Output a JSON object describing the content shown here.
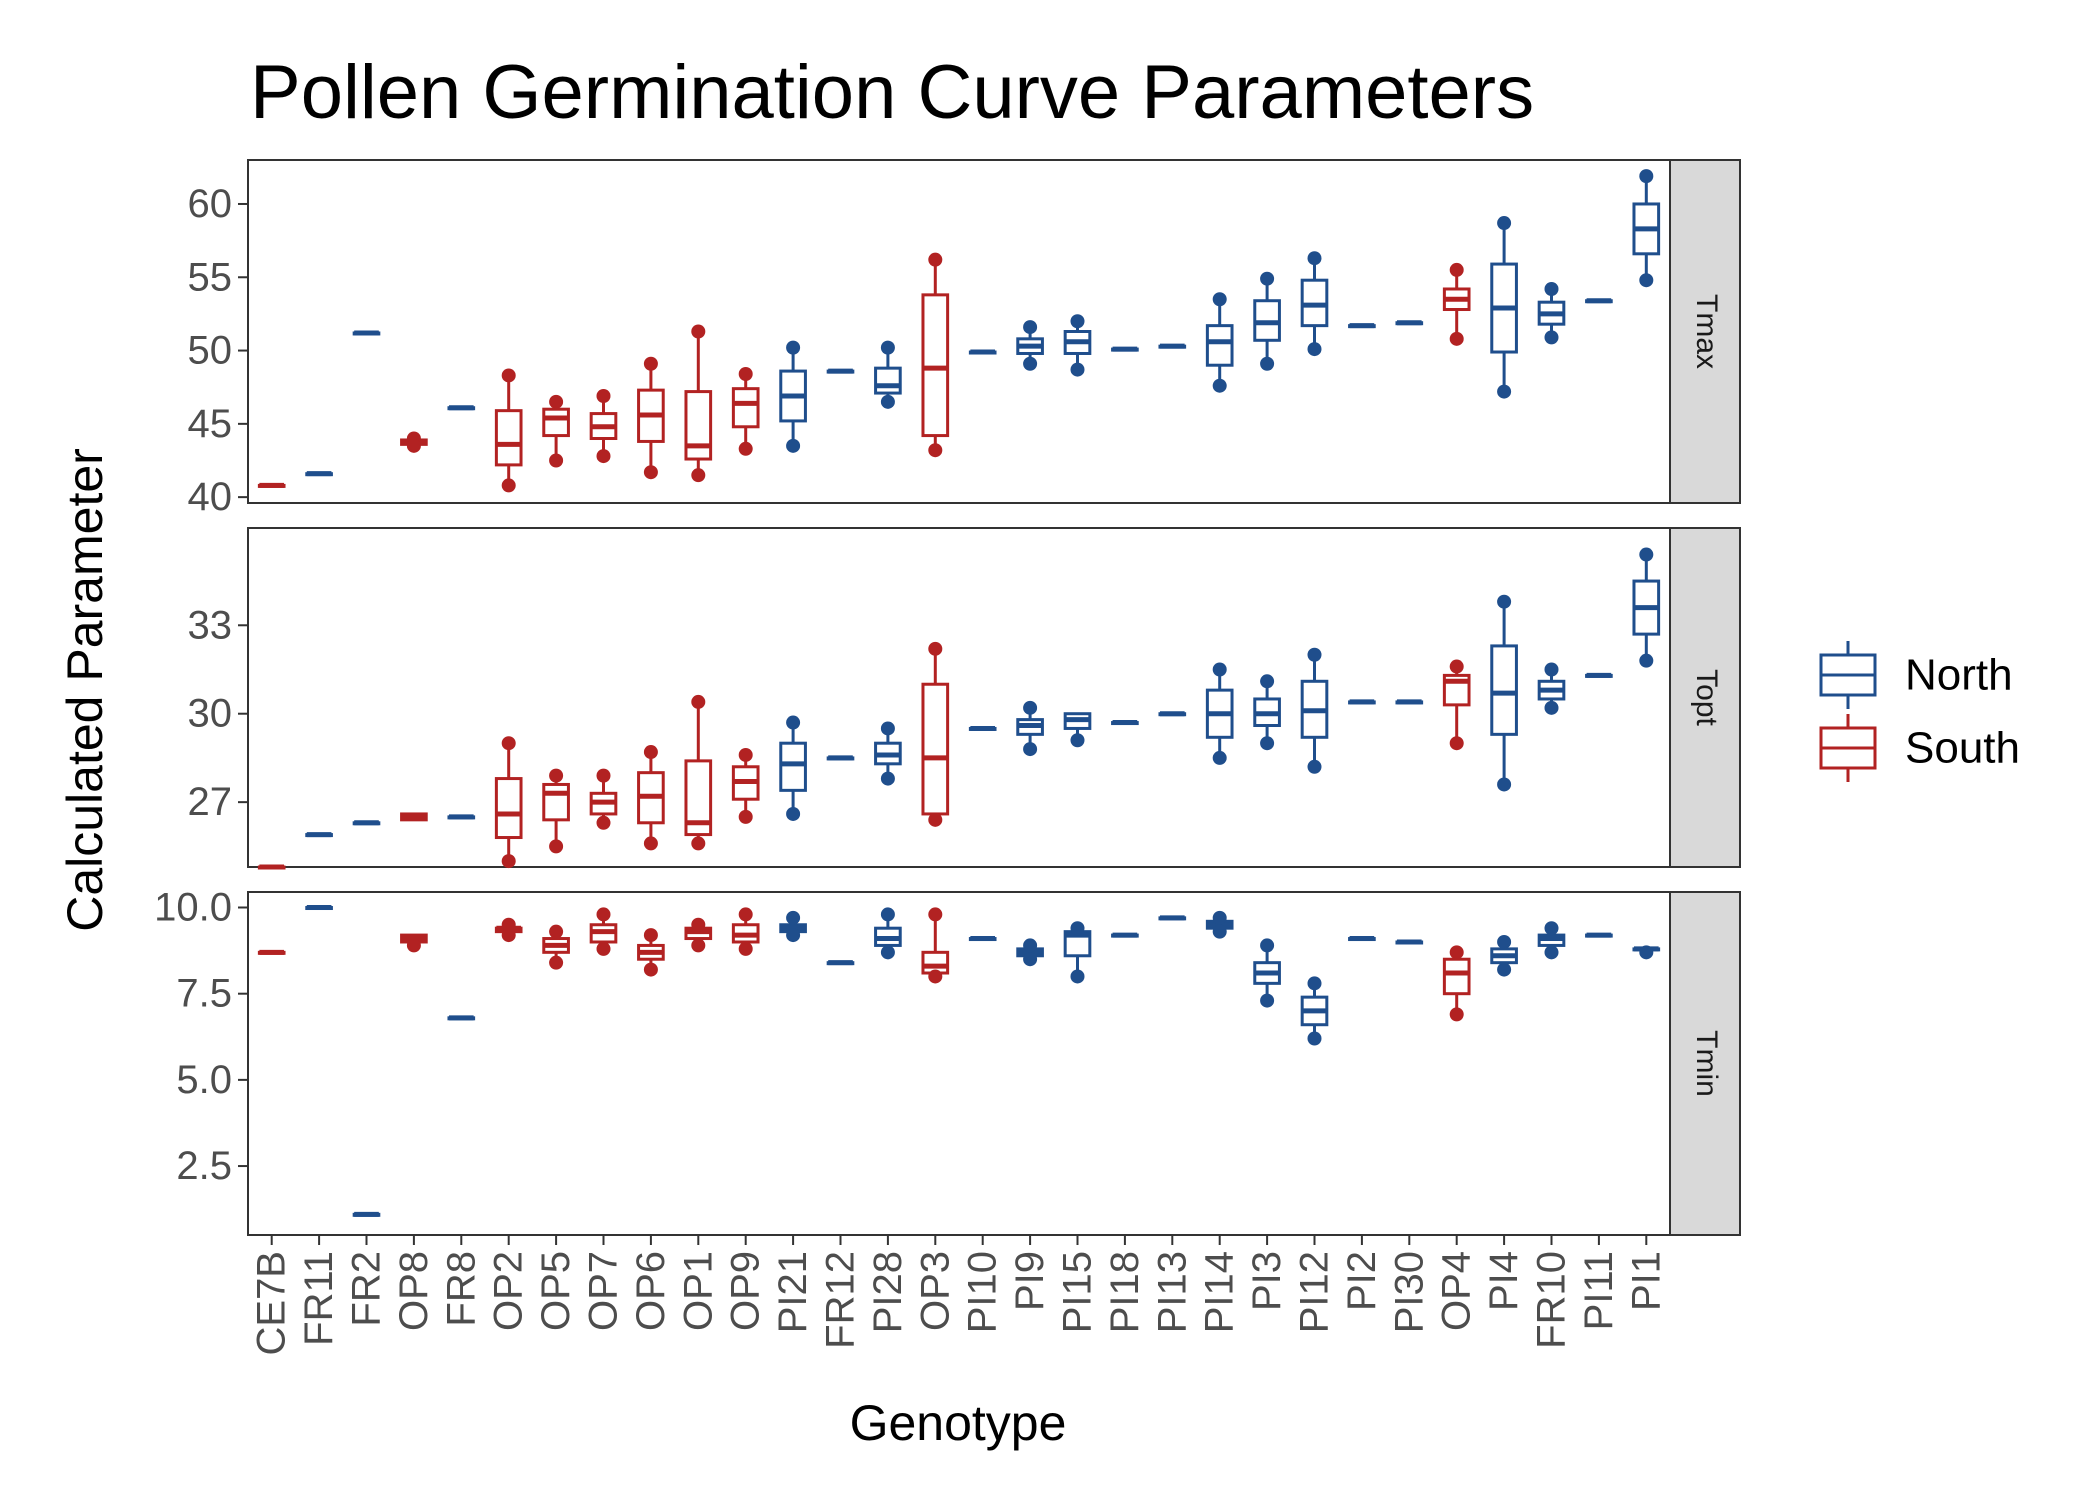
{
  "chart_data": {
    "type": "boxplot",
    "title": "Pollen Germination Curve Parameters",
    "xlabel": "Genotype",
    "ylabel": "Calculated Parameter",
    "categories": [
      "CE7B",
      "FR11",
      "FR2",
      "OP8",
      "FR8",
      "OP2",
      "OP5",
      "OP7",
      "OP6",
      "OP1",
      "OP9",
      "PI21",
      "FR12",
      "PI28",
      "OP3",
      "PI10",
      "PI9",
      "PI15",
      "PI18",
      "PI13",
      "PI14",
      "PI3",
      "PI12",
      "PI2",
      "PI30",
      "OP4",
      "PI4",
      "FR10",
      "PI11",
      "PI1"
    ],
    "group_of_category": [
      "South",
      "North",
      "North",
      "South",
      "North",
      "South",
      "South",
      "South",
      "South",
      "South",
      "South",
      "North",
      "North",
      "North",
      "South",
      "North",
      "North",
      "North",
      "North",
      "North",
      "North",
      "North",
      "North",
      "North",
      "North",
      "South",
      "North",
      "North",
      "North",
      "North"
    ],
    "legend": {
      "position": "right",
      "entries": [
        {
          "name": "North",
          "color": "#1f4e8c"
        },
        {
          "name": "South",
          "color": "#b22222"
        }
      ]
    },
    "colors": {
      "North": "#1f4e8c",
      "South": "#b22222"
    },
    "panels": [
      {
        "label": "Tmax",
        "ylim": [
          39.6,
          63
        ],
        "yticks": [
          40,
          45,
          50,
          55,
          60
        ],
        "ytick_labels": [
          "40",
          "45",
          "50",
          "55",
          "60"
        ],
        "boxes": [
          {
            "min": 40.8,
            "q1": 40.8,
            "med": 40.8,
            "q3": 40.8,
            "max": 40.8,
            "out": []
          },
          {
            "min": 41.6,
            "q1": 41.6,
            "med": 41.6,
            "q3": 41.6,
            "max": 41.6,
            "out": []
          },
          {
            "min": 51.2,
            "q1": 51.2,
            "med": 51.2,
            "q3": 51.2,
            "max": 51.2,
            "out": []
          },
          {
            "min": 43.5,
            "q1": 43.6,
            "med": 43.8,
            "q3": 43.9,
            "max": 44.0,
            "out": []
          },
          {
            "min": 46.1,
            "q1": 46.1,
            "med": 46.1,
            "q3": 46.1,
            "max": 46.1,
            "out": []
          },
          {
            "min": 40.8,
            "q1": 42.2,
            "med": 43.6,
            "q3": 45.9,
            "max": 48.3,
            "out": []
          },
          {
            "min": 42.5,
            "q1": 44.2,
            "med": 45.4,
            "q3": 46.0,
            "max": 46.5,
            "out": []
          },
          {
            "min": 42.8,
            "q1": 44.0,
            "med": 44.8,
            "q3": 45.7,
            "max": 46.9,
            "out": []
          },
          {
            "min": 41.7,
            "q1": 43.8,
            "med": 45.6,
            "q3": 47.3,
            "max": 49.1,
            "out": []
          },
          {
            "min": 41.5,
            "q1": 42.6,
            "med": 43.5,
            "q3": 47.2,
            "max": 51.3,
            "out": []
          },
          {
            "min": 43.3,
            "q1": 44.8,
            "med": 46.4,
            "q3": 47.4,
            "max": 48.4,
            "out": []
          },
          {
            "min": 43.5,
            "q1": 45.2,
            "med": 46.9,
            "q3": 48.6,
            "max": 50.2,
            "out": []
          },
          {
            "min": 48.6,
            "q1": 48.6,
            "med": 48.6,
            "q3": 48.6,
            "max": 48.6,
            "out": []
          },
          {
            "min": 46.5,
            "q1": 47.1,
            "med": 47.6,
            "q3": 48.8,
            "max": 50.2,
            "out": []
          },
          {
            "min": 43.2,
            "q1": 44.2,
            "med": 48.8,
            "q3": 53.8,
            "max": 56.2,
            "out": []
          },
          {
            "min": 49.9,
            "q1": 49.9,
            "med": 49.9,
            "q3": 49.9,
            "max": 49.9,
            "out": []
          },
          {
            "min": 49.1,
            "q1": 49.8,
            "med": 50.3,
            "q3": 50.8,
            "max": 51.6,
            "out": []
          },
          {
            "min": 48.7,
            "q1": 49.8,
            "med": 50.6,
            "q3": 51.3,
            "max": 52.0,
            "out": []
          },
          {
            "min": 50.1,
            "q1": 50.1,
            "med": 50.1,
            "q3": 50.1,
            "max": 50.1,
            "out": []
          },
          {
            "min": 50.3,
            "q1": 50.3,
            "med": 50.3,
            "q3": 50.3,
            "max": 50.3,
            "out": []
          },
          {
            "min": 47.6,
            "q1": 49.0,
            "med": 50.6,
            "q3": 51.7,
            "max": 53.5,
            "out": []
          },
          {
            "min": 49.1,
            "q1": 50.7,
            "med": 51.9,
            "q3": 53.4,
            "max": 54.9,
            "out": []
          },
          {
            "min": 50.1,
            "q1": 51.7,
            "med": 53.1,
            "q3": 54.8,
            "max": 56.3,
            "out": []
          },
          {
            "min": 51.7,
            "q1": 51.7,
            "med": 51.7,
            "q3": 51.7,
            "max": 51.7,
            "out": []
          },
          {
            "min": 51.9,
            "q1": 51.9,
            "med": 51.9,
            "q3": 51.9,
            "max": 51.9,
            "out": []
          },
          {
            "min": 50.8,
            "q1": 52.8,
            "med": 53.5,
            "q3": 54.2,
            "max": 55.5,
            "out": []
          },
          {
            "min": 47.2,
            "q1": 49.9,
            "med": 52.9,
            "q3": 55.9,
            "max": 58.7,
            "out": []
          },
          {
            "min": 50.9,
            "q1": 51.8,
            "med": 52.5,
            "q3": 53.3,
            "max": 54.2,
            "out": []
          },
          {
            "min": 53.4,
            "q1": 53.4,
            "med": 53.4,
            "q3": 53.4,
            "max": 53.4,
            "out": []
          },
          {
            "min": 54.8,
            "q1": 56.6,
            "med": 58.3,
            "q3": 60.0,
            "max": 61.9,
            "out": []
          }
        ]
      },
      {
        "label": "Topt",
        "ylim": [
          24.8,
          36.3
        ],
        "yticks": [
          27,
          30,
          33
        ],
        "ytick_labels": [
          "27",
          "30",
          "33"
        ],
        "boxes": [
          {
            "min": 24.8,
            "q1": 24.8,
            "med": 24.8,
            "q3": 24.8,
            "max": 24.8,
            "out": []
          },
          {
            "min": 25.9,
            "q1": 25.9,
            "med": 25.9,
            "q3": 25.9,
            "max": 25.9,
            "out": []
          },
          {
            "min": 26.3,
            "q1": 26.3,
            "med": 26.3,
            "q3": 26.3,
            "max": 26.3,
            "out": []
          },
          {
            "min": 26.4,
            "q1": 26.4,
            "med": 26.5,
            "q3": 26.6,
            "max": 26.6,
            "out": []
          },
          {
            "min": 26.5,
            "q1": 26.5,
            "med": 26.5,
            "q3": 26.5,
            "max": 26.5,
            "out": []
          },
          {
            "min": 25.0,
            "q1": 25.8,
            "med": 26.6,
            "q3": 27.8,
            "max": 29.0,
            "out": []
          },
          {
            "min": 25.5,
            "q1": 26.4,
            "med": 27.3,
            "q3": 27.6,
            "max": 27.9,
            "out": []
          },
          {
            "min": 26.3,
            "q1": 26.6,
            "med": 27.0,
            "q3": 27.3,
            "max": 27.9,
            "out": []
          },
          {
            "min": 25.6,
            "q1": 26.3,
            "med": 27.2,
            "q3": 28.0,
            "max": 28.7,
            "out": []
          },
          {
            "min": 25.6,
            "q1": 25.9,
            "med": 26.3,
            "q3": 28.4,
            "max": 30.4,
            "out": []
          },
          {
            "min": 26.5,
            "q1": 27.1,
            "med": 27.7,
            "q3": 28.2,
            "max": 28.6,
            "out": []
          },
          {
            "min": 26.6,
            "q1": 27.4,
            "med": 28.3,
            "q3": 29.0,
            "max": 29.7,
            "out": []
          },
          {
            "min": 28.5,
            "q1": 28.5,
            "med": 28.5,
            "q3": 28.5,
            "max": 28.5,
            "out": []
          },
          {
            "min": 27.8,
            "q1": 28.3,
            "med": 28.6,
            "q3": 29.0,
            "max": 29.5,
            "out": []
          },
          {
            "min": 26.4,
            "q1": 26.6,
            "med": 28.5,
            "q3": 31.0,
            "max": 32.2,
            "out": []
          },
          {
            "min": 29.5,
            "q1": 29.5,
            "med": 29.5,
            "q3": 29.5,
            "max": 29.5,
            "out": []
          },
          {
            "min": 28.8,
            "q1": 29.3,
            "med": 29.6,
            "q3": 29.8,
            "max": 30.2,
            "out": []
          },
          {
            "min": 29.1,
            "q1": 29.5,
            "med": 29.8,
            "q3": 30.0,
            "max": 30.0,
            "out": []
          },
          {
            "min": 29.7,
            "q1": 29.7,
            "med": 29.7,
            "q3": 29.7,
            "max": 29.7,
            "out": []
          },
          {
            "min": 30.0,
            "q1": 30.0,
            "med": 30.0,
            "q3": 30.0,
            "max": 30.0,
            "out": []
          },
          {
            "min": 28.5,
            "q1": 29.2,
            "med": 30.0,
            "q3": 30.8,
            "max": 31.5,
            "out": []
          },
          {
            "min": 29.0,
            "q1": 29.6,
            "med": 30.0,
            "q3": 30.5,
            "max": 31.1,
            "out": []
          },
          {
            "min": 28.2,
            "q1": 29.2,
            "med": 30.1,
            "q3": 31.1,
            "max": 32.0,
            "out": []
          },
          {
            "min": 30.4,
            "q1": 30.4,
            "med": 30.4,
            "q3": 30.4,
            "max": 30.4,
            "out": []
          },
          {
            "min": 30.4,
            "q1": 30.4,
            "med": 30.4,
            "q3": 30.4,
            "max": 30.4,
            "out": []
          },
          {
            "min": 29.0,
            "q1": 30.3,
            "med": 31.1,
            "q3": 31.3,
            "max": 31.6,
            "out": []
          },
          {
            "min": 27.6,
            "q1": 29.3,
            "med": 30.7,
            "q3": 32.3,
            "max": 33.8,
            "out": []
          },
          {
            "min": 30.2,
            "q1": 30.5,
            "med": 30.8,
            "q3": 31.1,
            "max": 31.5,
            "out": []
          },
          {
            "min": 31.3,
            "q1": 31.3,
            "med": 31.3,
            "q3": 31.3,
            "max": 31.3,
            "out": []
          },
          {
            "min": 31.8,
            "q1": 32.7,
            "med": 33.6,
            "q3": 34.5,
            "max": 35.4,
            "out": []
          }
        ]
      },
      {
        "label": "Tmin",
        "ylim": [
          0.5,
          10.45
        ],
        "yticks": [
          2.5,
          5.0,
          7.5,
          10.0
        ],
        "ytick_labels": [
          "2.5",
          "5.0",
          "7.5",
          "10.0"
        ],
        "boxes": [
          {
            "min": 8.7,
            "q1": 8.7,
            "med": 8.7,
            "q3": 8.7,
            "max": 8.7,
            "out": []
          },
          {
            "min": 10.0,
            "q1": 10.0,
            "med": 10.0,
            "q3": 10.0,
            "max": 10.0,
            "out": []
          },
          {
            "min": 1.1,
            "q1": 1.1,
            "med": 1.1,
            "q3": 1.1,
            "max": 1.1,
            "out": []
          },
          {
            "min": 8.9,
            "q1": 9.0,
            "med": 9.1,
            "q3": 9.2,
            "max": 9.2,
            "out": []
          },
          {
            "min": 6.8,
            "q1": 6.8,
            "med": 6.8,
            "q3": 6.8,
            "max": 6.8,
            "out": []
          },
          {
            "min": 9.2,
            "q1": 9.3,
            "med": 9.4,
            "q3": 9.4,
            "max": 9.5,
            "out": []
          },
          {
            "min": 8.4,
            "q1": 8.7,
            "med": 8.9,
            "q3": 9.1,
            "max": 9.3,
            "out": []
          },
          {
            "min": 8.8,
            "q1": 9.0,
            "med": 9.3,
            "q3": 9.5,
            "max": 9.8,
            "out": []
          },
          {
            "min": 8.2,
            "q1": 8.5,
            "med": 8.7,
            "q3": 8.9,
            "max": 9.2,
            "out": []
          },
          {
            "min": 8.9,
            "q1": 9.1,
            "med": 9.3,
            "q3": 9.4,
            "max": 9.5,
            "out": []
          },
          {
            "min": 8.8,
            "q1": 9.0,
            "med": 9.2,
            "q3": 9.5,
            "max": 9.8,
            "out": []
          },
          {
            "min": 9.2,
            "q1": 9.3,
            "med": 9.4,
            "q3": 9.5,
            "max": 9.7,
            "out": []
          },
          {
            "min": 8.4,
            "q1": 8.4,
            "med": 8.4,
            "q3": 8.4,
            "max": 8.4,
            "out": []
          },
          {
            "min": 8.7,
            "q1": 8.9,
            "med": 9.1,
            "q3": 9.4,
            "max": 9.8,
            "out": []
          },
          {
            "min": 8.0,
            "q1": 8.1,
            "med": 8.3,
            "q3": 8.7,
            "max": 9.8,
            "out": []
          },
          {
            "min": 9.1,
            "q1": 9.1,
            "med": 9.1,
            "q3": 9.1,
            "max": 9.1,
            "out": []
          },
          {
            "min": 8.5,
            "q1": 8.6,
            "med": 8.7,
            "q3": 8.8,
            "max": 8.9,
            "out": []
          },
          {
            "min": 8.0,
            "q1": 8.6,
            "med": 9.2,
            "q3": 9.3,
            "max": 9.4,
            "out": []
          },
          {
            "min": 9.2,
            "q1": 9.2,
            "med": 9.2,
            "q3": 9.2,
            "max": 9.2,
            "out": []
          },
          {
            "min": 9.7,
            "q1": 9.7,
            "med": 9.7,
            "q3": 9.7,
            "max": 9.7,
            "out": []
          },
          {
            "min": 9.3,
            "q1": 9.4,
            "med": 9.5,
            "q3": 9.6,
            "max": 9.7,
            "out": []
          },
          {
            "min": 7.3,
            "q1": 7.8,
            "med": 8.1,
            "q3": 8.4,
            "max": 8.9,
            "out": []
          },
          {
            "min": 6.2,
            "q1": 6.6,
            "med": 7.0,
            "q3": 7.4,
            "max": 7.8,
            "out": []
          },
          {
            "min": 9.1,
            "q1": 9.1,
            "med": 9.1,
            "q3": 9.1,
            "max": 9.1,
            "out": []
          },
          {
            "min": 9.0,
            "q1": 9.0,
            "med": 9.0,
            "q3": 9.0,
            "max": 9.0,
            "out": []
          },
          {
            "min": 6.9,
            "q1": 7.5,
            "med": 8.1,
            "q3": 8.5,
            "max": 8.7,
            "out": []
          },
          {
            "min": 8.2,
            "q1": 8.4,
            "med": 8.6,
            "q3": 8.8,
            "max": 9.0,
            "out": []
          },
          {
            "min": 8.7,
            "q1": 8.9,
            "med": 9.1,
            "q3": 9.2,
            "max": 9.4,
            "out": []
          },
          {
            "min": 9.2,
            "q1": 9.2,
            "med": 9.2,
            "q3": 9.2,
            "max": 9.2,
            "out": []
          },
          {
            "min": 8.7,
            "q1": 8.8,
            "med": 8.8,
            "q3": 8.8,
            "max": 8.8,
            "out": []
          }
        ]
      }
    ],
    "grid": false
  }
}
